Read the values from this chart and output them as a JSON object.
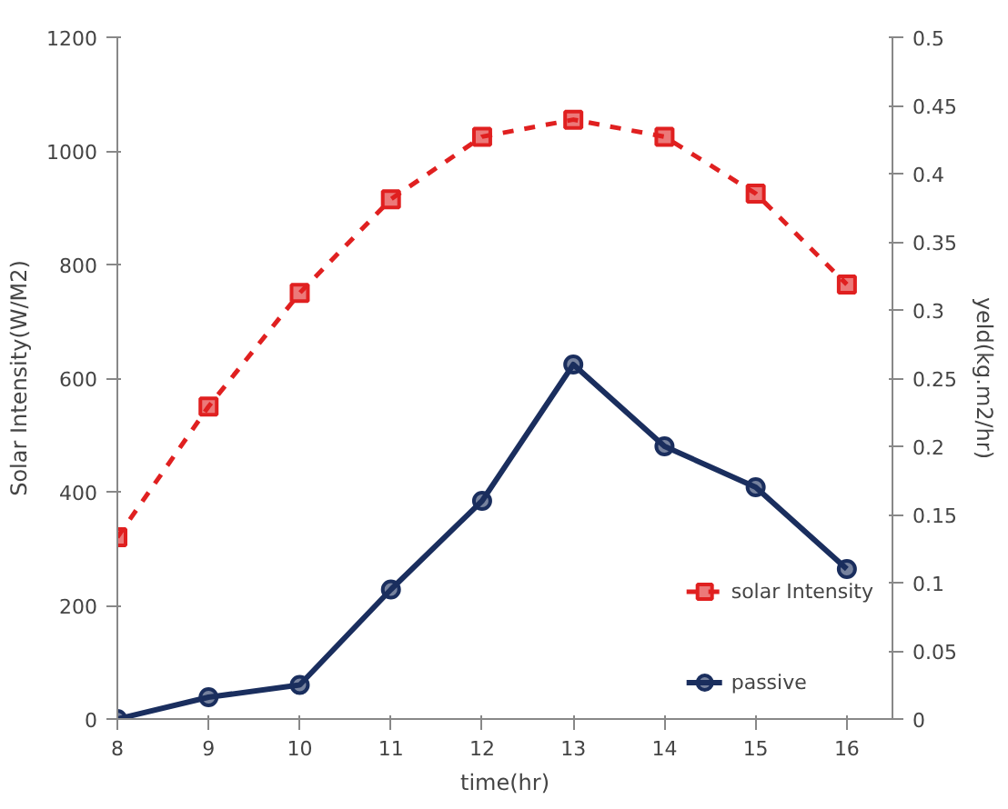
{
  "chart_data": {
    "type": "line",
    "xlabel": "time(hr)",
    "ylabel": "Solar Intensity(W/M2)",
    "y2label": "yeld(kg.m2/hr)",
    "x": [
      8,
      9,
      10,
      11,
      12,
      13,
      14,
      15,
      16
    ],
    "series": [
      {
        "name": "solar Intensity",
        "color": "#e02020",
        "values": [
          320,
          550,
          750,
          915,
          1025,
          1055,
          1025,
          925,
          765
        ],
        "marker": "square",
        "line_style": "dashed"
      },
      {
        "name": "passive",
        "color": "#1a2e5e",
        "values": [
          0,
          0.016,
          0.025,
          0.095,
          0.16,
          0.26,
          0.2,
          0.17,
          0.11
        ],
        "marker": "circle",
        "line_style": "solid",
        "axis": "y2"
      }
    ],
    "xlim": [
      8,
      16.5
    ],
    "xticks": [
      8,
      9,
      10,
      11,
      12,
      13,
      14,
      15,
      16
    ],
    "ylim": [
      0,
      1200
    ],
    "yticks": [
      0,
      200,
      400,
      600,
      800,
      1000,
      1200
    ],
    "y2lim": [
      0,
      0.5
    ],
    "y2ticks": [
      0,
      0.05,
      0.1,
      0.15,
      0.2,
      0.25,
      0.3,
      0.35,
      0.4,
      0.45,
      0.5
    ],
    "grid": false,
    "legend": "bottom right"
  }
}
